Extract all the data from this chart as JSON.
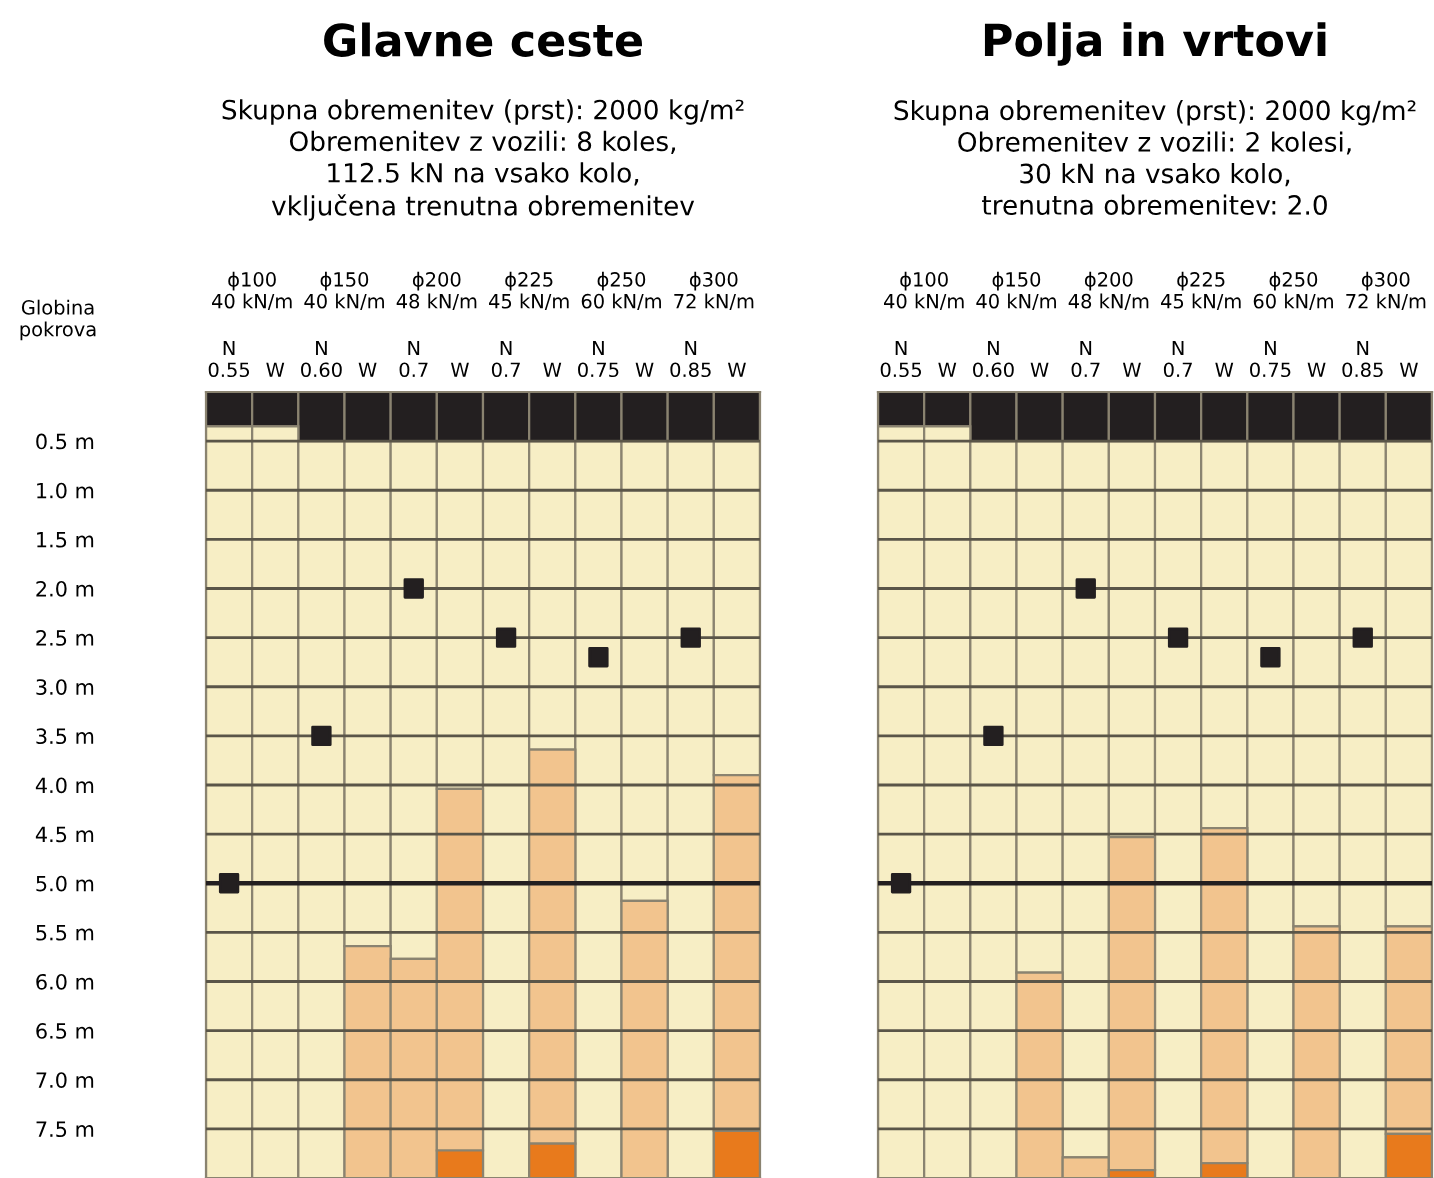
{
  "chart_data": [
    {
      "type": "bar",
      "stacked": true,
      "title": "Glavne ceste",
      "subtitle": "Skupna obremenitev (prst): 2000 kg/m²\nObremenitev z vozili: 8 koles,\n112.5 kN na vsako kolo,\nvključena trenutna obremenitev",
      "ylabel": "Globina\npokrova",
      "categories": [
        "N\n0.55",
        "W",
        "N\n0.60",
        "W",
        "N\n0.7",
        "W",
        "N\n0.7",
        "W",
        "N\n0.75",
        "W",
        "N\n0.85",
        "W"
      ],
      "annotations": [
        "ϕ100\n40 kN/m",
        "ϕ150\n40 kN/m",
        "ϕ200\n48 kN/m",
        "ϕ225\n45 kN/m",
        "ϕ250\n60 kN/m",
        "ϕ300\n72 kN/m"
      ],
      "ylim": [
        8.0,
        0
      ],
      "yticks": [
        {
          "value": 0.5,
          "label": "0.5 m"
        },
        {
          "value": 1.0,
          "label": "1.0 m"
        },
        {
          "value": 1.5,
          "label": "1.5 m"
        },
        {
          "value": 2.0,
          "label": "2.0 m"
        },
        {
          "value": 2.5,
          "label": "2.5 m"
        },
        {
          "value": 3.0,
          "label": "3.0 m"
        },
        {
          "value": 3.5,
          "label": "3.5 m"
        },
        {
          "value": 4.0,
          "label": "4.0 m"
        },
        {
          "value": 4.5,
          "label": "4.5 m"
        },
        {
          "value": 5.0,
          "label": "5.0 m"
        },
        {
          "value": 5.5,
          "label": "5.5 m"
        },
        {
          "value": 6.0,
          "label": "6.0 m"
        },
        {
          "value": 6.5,
          "label": "6.5 m"
        },
        {
          "value": 7.0,
          "label": "7.0 m"
        },
        {
          "value": 7.5,
          "label": "7.5 m"
        }
      ],
      "grid": "y",
      "ref_lines": [
        {
          "axis": "y",
          "value": 5.0,
          "color": "#231f20"
        }
      ],
      "series": [
        {
          "color": "#231f20",
          "values": [
            0.35,
            0.35,
            0.5,
            0.5,
            0.5,
            0.5,
            0.5,
            0.5,
            0.5,
            0.5,
            0.5,
            0.5
          ]
        },
        {
          "color": "#f7eec5",
          "values": [
            7.65,
            7.65,
            7.5,
            5.14,
            5.27,
            3.54,
            7.5,
            3.14,
            7.5,
            4.68,
            7.5,
            3.4
          ]
        },
        {
          "color": "#f2c48e",
          "values": [
            null,
            null,
            null,
            2.36,
            2.23,
            3.68,
            null,
            4.01,
            null,
            2.82,
            null,
            3.62
          ]
        },
        {
          "color": "#e87a1c",
          "values": [
            null,
            null,
            null,
            null,
            null,
            0.28,
            null,
            0.35,
            null,
            null,
            null,
            0.48
          ]
        },
        {
          "type": "scatter",
          "color": "#231f20",
          "marker": "square",
          "values": [
            5.0,
            null,
            3.5,
            null,
            2.0,
            null,
            2.5,
            null,
            2.7,
            null,
            2.5,
            null
          ]
        }
      ]
    },
    {
      "type": "bar",
      "stacked": true,
      "title": "Polja in vrtovi",
      "subtitle": "Skupna obremenitev (prst): 2000 kg/m²\nObremenitev z vozili: 2 kolesi,\n30 kN na vsako kolo,\ntrenutna obremenitev: 2.0",
      "categories": [
        "N\n0.55",
        "W",
        "N\n0.60",
        "W",
        "N\n0.7",
        "W",
        "N\n0.7",
        "W",
        "N\n0.75",
        "W",
        "N\n0.85",
        "W"
      ],
      "annotations": [
        "ϕ100\n40 kN/m",
        "ϕ150\n40 kN/m",
        "ϕ200\n48 kN/m",
        "ϕ225\n45 kN/m",
        "ϕ250\n60 kN/m",
        "ϕ300\n72 kN/m"
      ],
      "ylim": [
        8.0,
        0
      ],
      "tick_labels": "x",
      "grid": "y",
      "ref_lines": [
        {
          "axis": "y",
          "value": 5.0,
          "color": "#231f20"
        }
      ],
      "series": [
        {
          "color": "#231f20",
          "values": [
            0.35,
            0.35,
            0.5,
            0.5,
            0.5,
            0.5,
            0.5,
            0.5,
            0.5,
            0.5,
            0.5,
            0.5
          ]
        },
        {
          "color": "#f7eec5",
          "values": [
            7.65,
            7.65,
            7.5,
            5.41,
            7.29,
            4.03,
            7.5,
            3.94,
            7.5,
            4.94,
            7.5,
            4.94
          ]
        },
        {
          "color": "#f2c48e",
          "values": [
            null,
            null,
            null,
            2.09,
            0.21,
            3.39,
            null,
            3.41,
            null,
            2.56,
            null,
            2.11
          ]
        },
        {
          "color": "#e87a1c",
          "values": [
            null,
            null,
            null,
            null,
            null,
            0.08,
            null,
            0.15,
            null,
            null,
            null,
            0.45
          ]
        },
        {
          "type": "scatter",
          "color": "#231f20",
          "marker": "square",
          "values": [
            5.0,
            null,
            3.5,
            null,
            2.0,
            null,
            2.5,
            null,
            2.7,
            null,
            2.5,
            null
          ]
        }
      ]
    }
  ]
}
